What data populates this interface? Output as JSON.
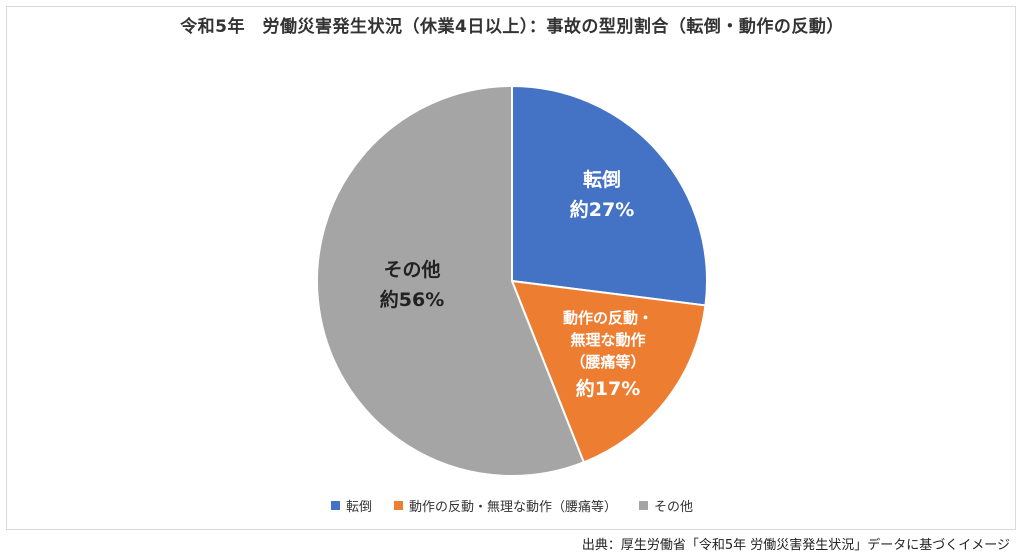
{
  "chart_data": {
    "type": "pie",
    "title": "令和5年　労働災害発生状況（休業4日以上）：事故の型別割合（転倒・動作の反動）",
    "slices": [
      {
        "name": "転倒",
        "label_lines": [
          "転倒",
          "約27%"
        ],
        "value": 27,
        "color": "#4472C4"
      },
      {
        "name": "動作の反動・無理な動作（腰痛等）",
        "label_lines": [
          "動作の反動・",
          "無理な動作",
          "（腰痛等）",
          "約17%"
        ],
        "value": 17,
        "color": "#ED7D31"
      },
      {
        "name": "その他",
        "label_lines": [
          "その他",
          "約56%"
        ],
        "value": 56,
        "color": "#A5A5A5"
      }
    ],
    "legend_position": "bottom"
  },
  "source_note": "出典：厚生労働省「令和5年 労働災害発生状況」データに基づくイメージ"
}
